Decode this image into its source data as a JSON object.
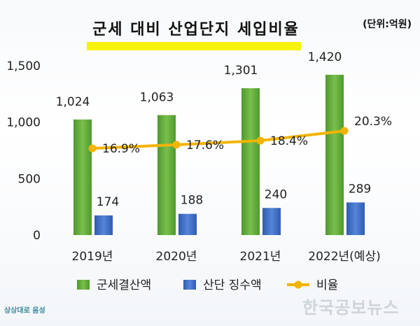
{
  "title": "군세 대비 산업단지 세입비율",
  "unit": "(단위:억원)",
  "watermark": "한국공보뉴스",
  "logo_text": "상상대로 음성",
  "colors": {
    "bar1": "#5fa83a",
    "bar2": "#3f6fc8",
    "line": "#f2b400",
    "highlight": "#f7f20a"
  },
  "chart_data": {
    "type": "bar",
    "categories": [
      "2019년",
      "2020년",
      "2021년",
      "2022년(예상)"
    ],
    "ylim": [
      0,
      1500
    ],
    "yticks": [
      "0",
      "500",
      "1,000",
      "1,500"
    ],
    "series": [
      {
        "name": "군세결산액",
        "values": [
          1024,
          1063,
          1301,
          1420
        ],
        "labels": [
          "1,024",
          "1,063",
          "1,301",
          "1,420"
        ]
      },
      {
        "name": "산단 징수액",
        "values": [
          174,
          188,
          240,
          289
        ],
        "labels": [
          "174",
          "188",
          "240",
          "289"
        ]
      }
    ],
    "line_series": {
      "name": "비율",
      "values": [
        16.9,
        17.6,
        18.4,
        20.3
      ],
      "labels": [
        "16.9%",
        "17.6%",
        "18.4%",
        "20.3%"
      ],
      "ylim_percent": [
        0,
        33
      ]
    },
    "legend": [
      "군세결산액",
      "산단 징수액",
      "비율"
    ],
    "legend_position": "bottom",
    "grid": false
  }
}
